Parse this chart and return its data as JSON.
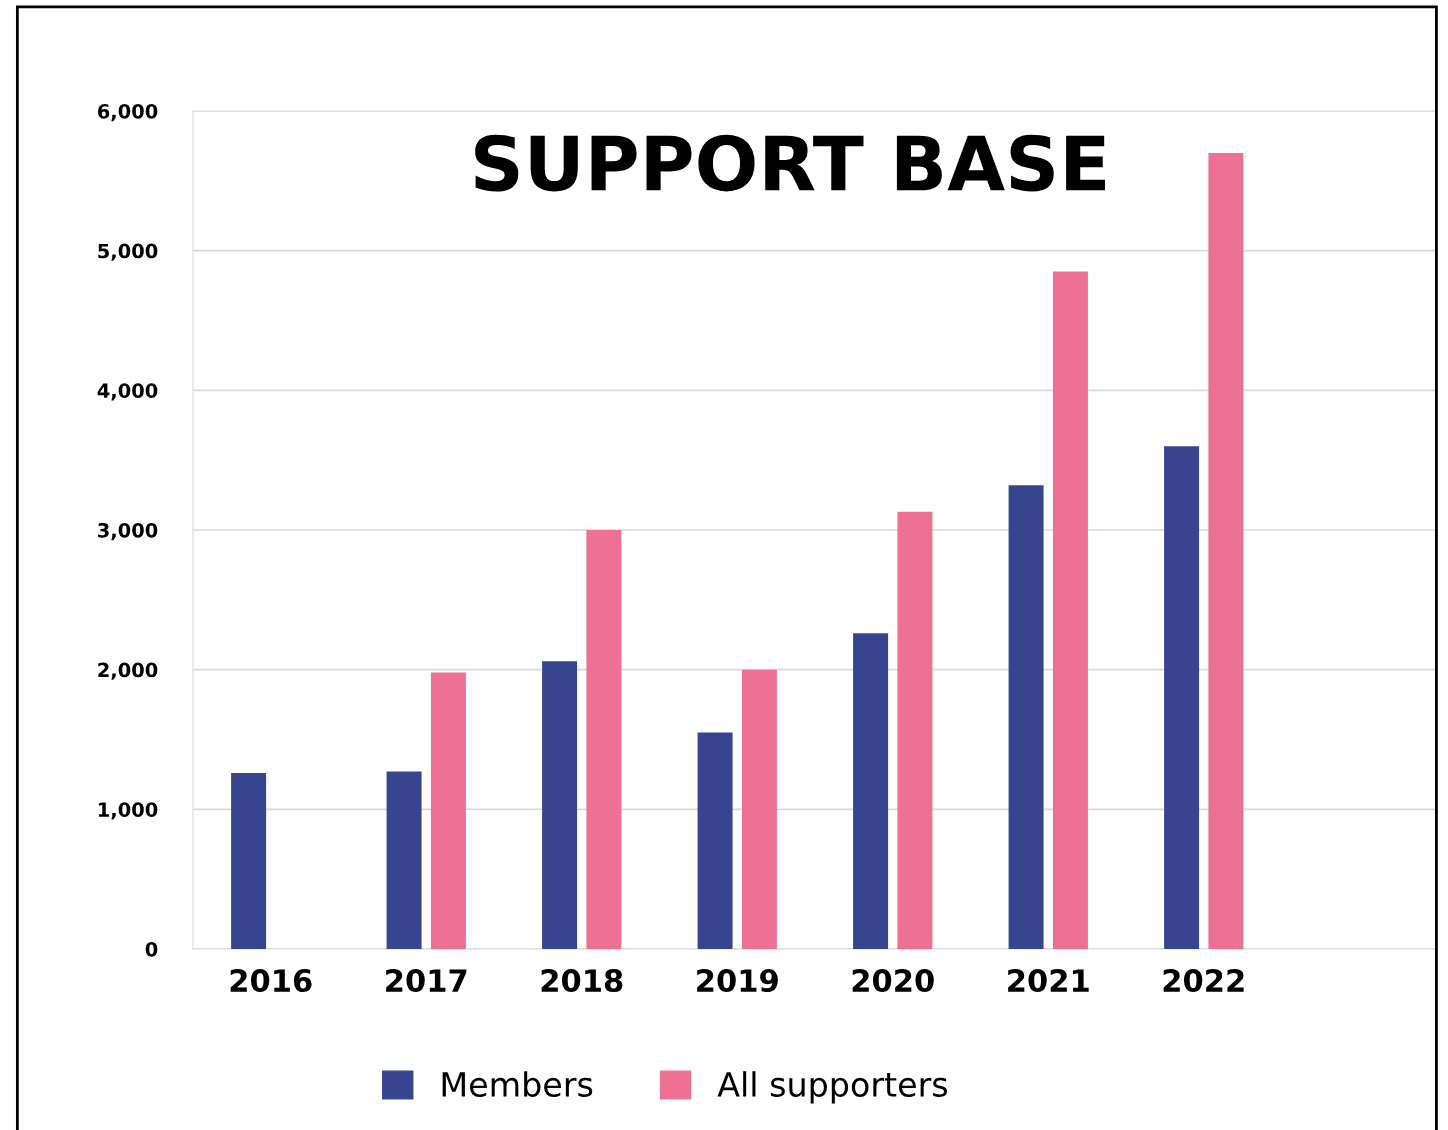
{
  "chart_data": {
    "type": "bar",
    "title": "SUPPORT BASE",
    "categories": [
      "2016",
      "2017",
      "2018",
      "2019",
      "2020",
      "2021",
      "2022",
      null
    ],
    "series": [
      {
        "name": "Members",
        "color": "#374591",
        "values": [
          1260,
          1270,
          2060,
          1550,
          2260,
          3320,
          3600,
          null
        ]
      },
      {
        "name": "All supporters",
        "color": "#ed7193",
        "values": [
          null,
          1980,
          3000,
          2000,
          3130,
          4850,
          5700,
          null
        ]
      }
    ],
    "ylim": [
      0,
      6000
    ],
    "yticks": [
      {
        "value": 0,
        "label": "0"
      },
      {
        "value": 1000,
        "label": "1,000"
      },
      {
        "value": 2000,
        "label": "2,000"
      },
      {
        "value": 3000,
        "label": "3,000"
      },
      {
        "value": 4000,
        "label": "4,000"
      },
      {
        "value": 5000,
        "label": "5,000"
      },
      {
        "value": 6000,
        "label": "6,000"
      }
    ],
    "grid": "y",
    "legend": "bottom"
  }
}
